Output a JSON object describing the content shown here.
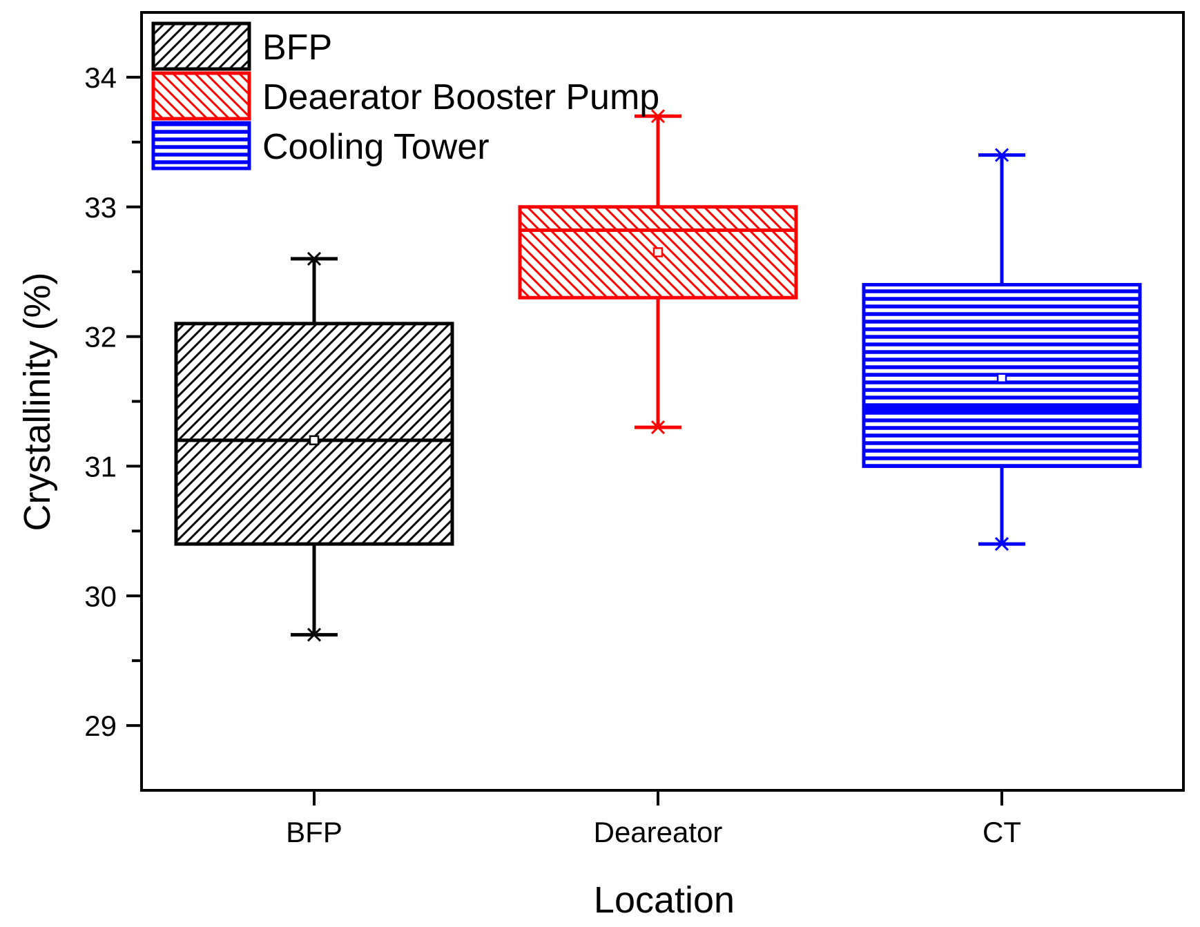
{
  "chart_data": {
    "type": "box",
    "xlabel": "Location",
    "ylabel": "Crystallinity (%)",
    "ylim": [
      28.5,
      34.5
    ],
    "yticks": [
      29,
      30,
      31,
      32,
      33,
      34
    ],
    "ytick_labels": [
      "29",
      "30",
      "31",
      "32",
      "33",
      "34"
    ],
    "y_minor_step": 0.5,
    "categories": [
      "BFP",
      "Deareator",
      "CT"
    ],
    "legend": {
      "placement": "top-left",
      "entries": [
        "BFP",
        "Deaerator Booster Pump",
        "Cooling Tower"
      ]
    },
    "series": [
      {
        "category": "BFP",
        "legend": "BFP",
        "color": "#000000",
        "pattern": "diag-left",
        "whisker_low": 29.7,
        "q1": 30.4,
        "median": 31.2,
        "mean": 31.2,
        "q3": 32.1,
        "whisker_high": 32.6
      },
      {
        "category": "Deareator",
        "legend": "Deaerator Booster Pump",
        "color": "#ff0000",
        "pattern": "diag-right",
        "whisker_low": 31.3,
        "q1": 32.3,
        "median": 32.82,
        "mean": 32.65,
        "q3": 33.0,
        "whisker_high": 33.7
      },
      {
        "category": "CT",
        "legend": "Cooling Tower",
        "color": "#0000ff",
        "pattern": "horizontal",
        "whisker_low": 30.4,
        "q1": 31.0,
        "median": 31.45,
        "mean": 31.68,
        "q3": 32.4,
        "whisker_high": 33.4
      }
    ]
  }
}
